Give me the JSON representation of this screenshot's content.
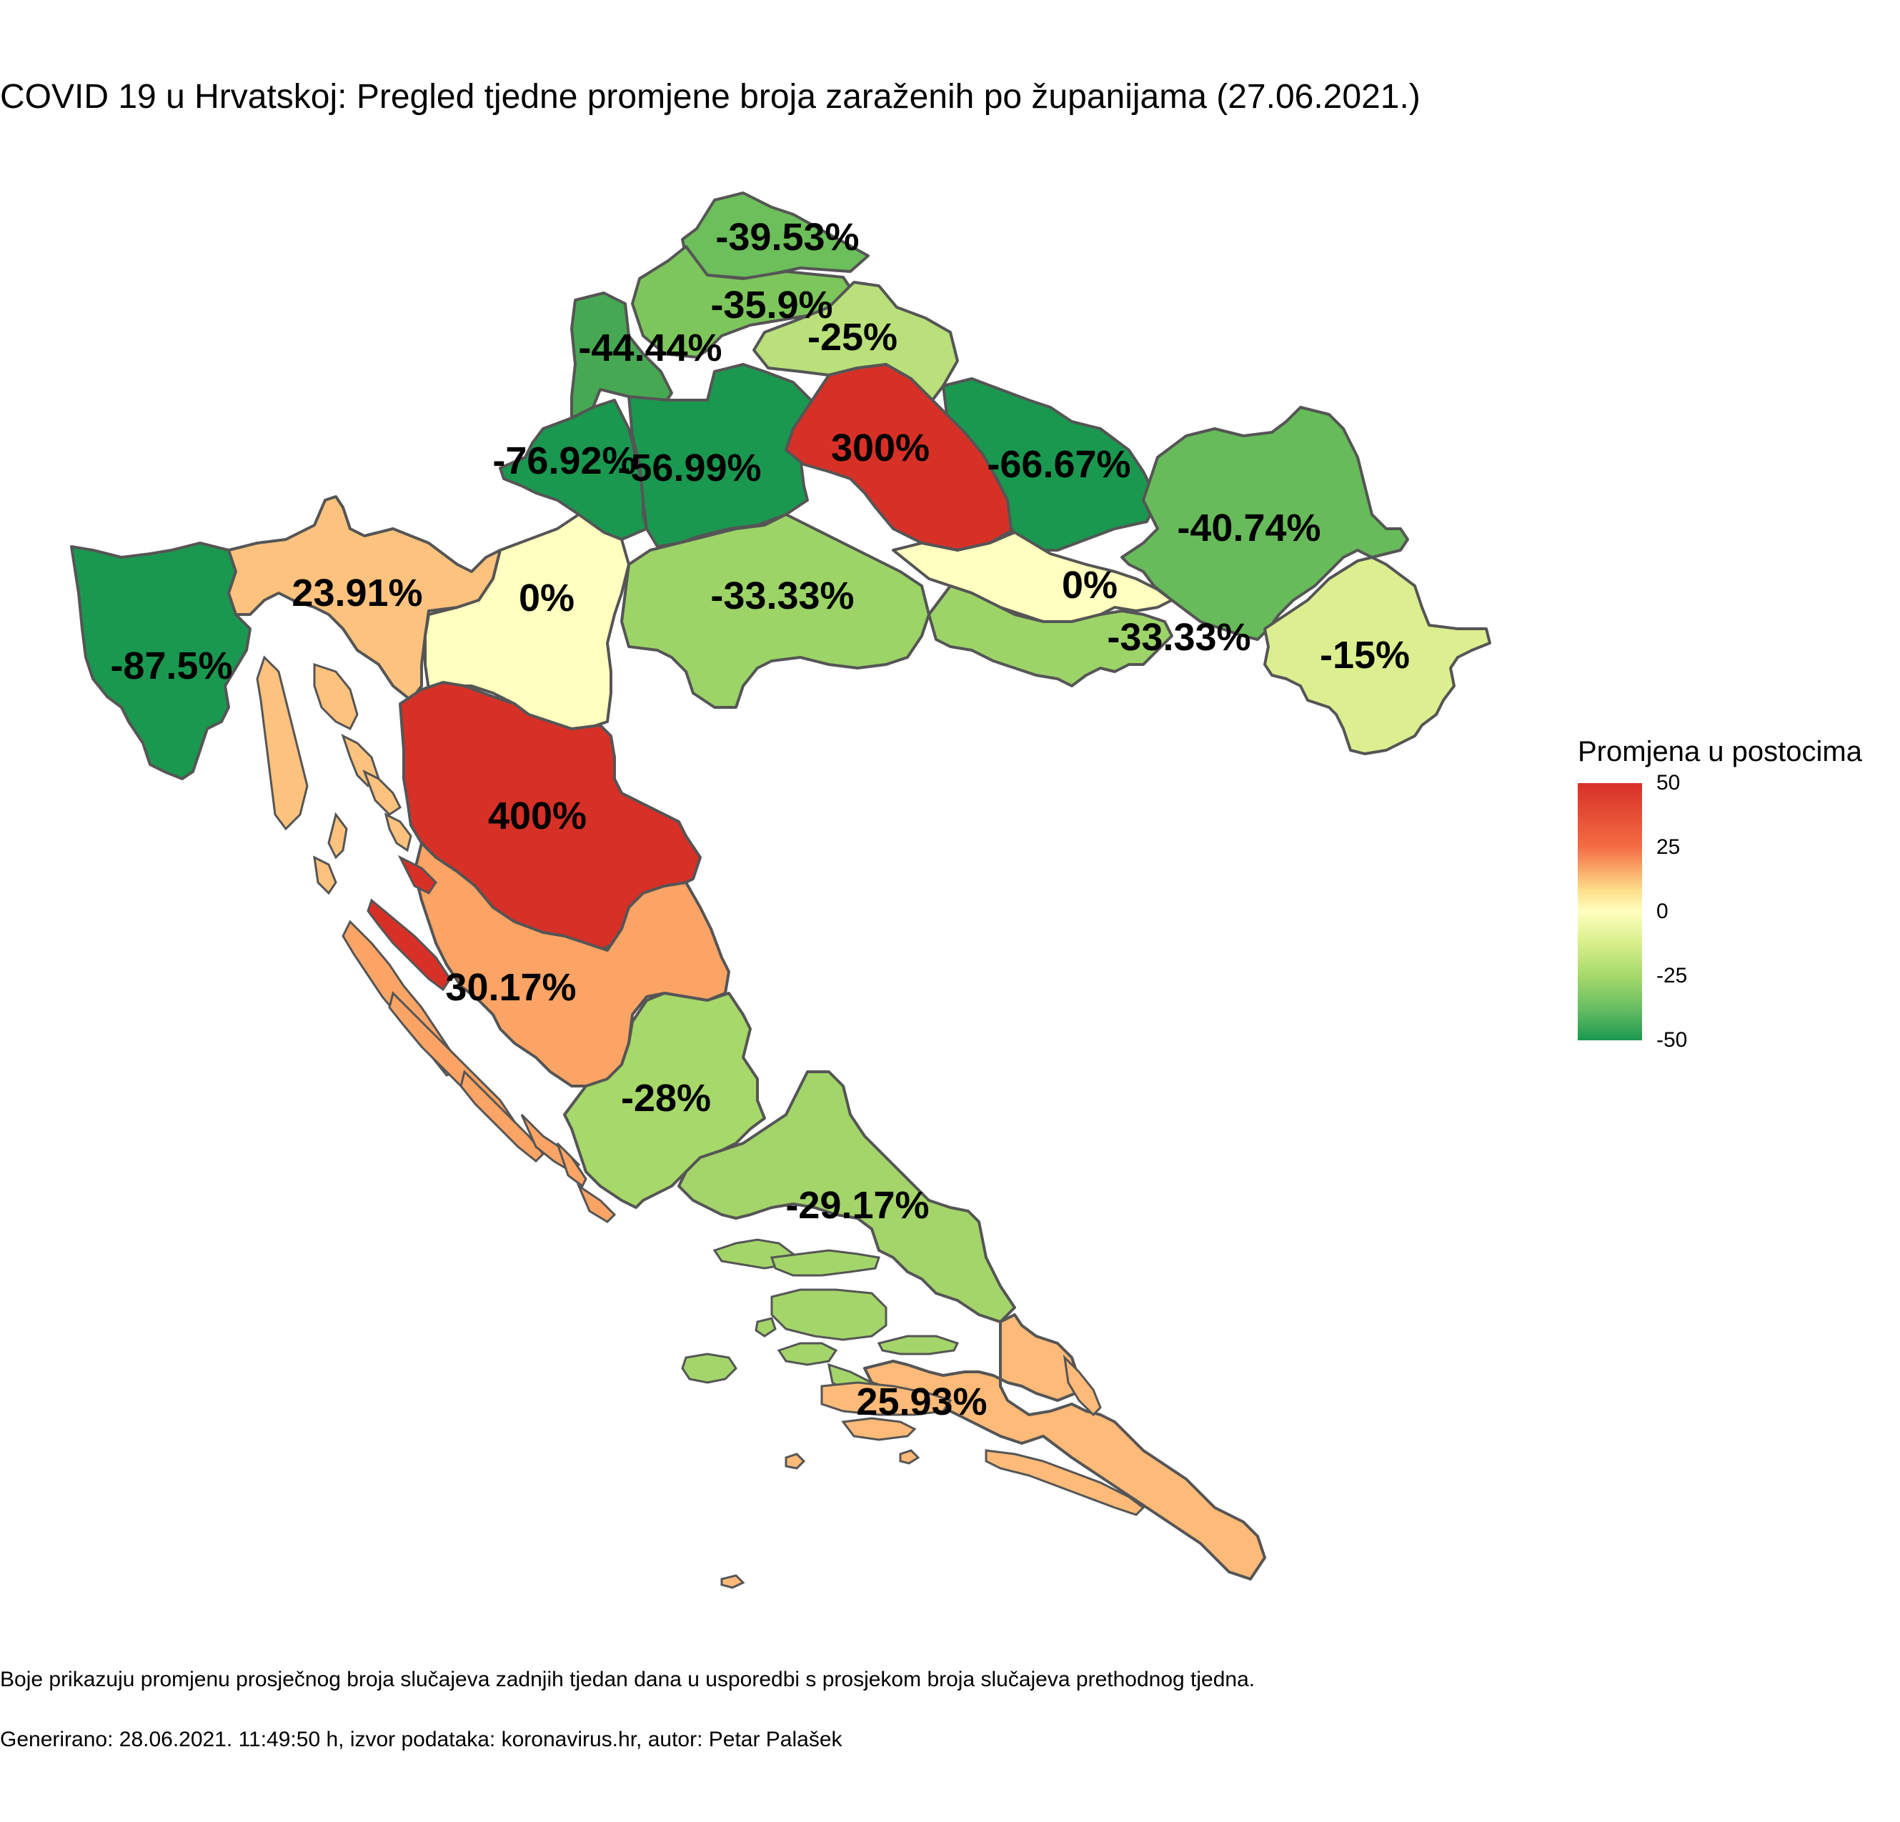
{
  "title": "COVID 19 u Hrvatskoj: Pregled tjedne promjene broja zaraženih po županijama (27.06.2021.)",
  "legend": {
    "title": "Promjena u postocima",
    "ticks": [
      "50",
      "25",
      "0",
      "-25",
      "-50"
    ],
    "colors": {
      "high": "#d73027",
      "mid": "#ffffbf",
      "low": "#1a9850"
    }
  },
  "regions": [
    {
      "label": "-39.53%",
      "value": -39.53,
      "color": "#6cbf5a"
    },
    {
      "label": "-35.9%",
      "value": -35.9,
      "color": "#7dc65c"
    },
    {
      "label": "-25%",
      "value": -25,
      "color": "#b9e07a"
    },
    {
      "label": "-44.44%",
      "value": -44.44,
      "color": "#46a852"
    },
    {
      "label": "-76.92%",
      "value": -76.92,
      "color": "#1a9850"
    },
    {
      "label": "-56.99%",
      "value": -56.99,
      "color": "#1a9850"
    },
    {
      "label": "300%",
      "value": 300,
      "color": "#d73027"
    },
    {
      "label": "-66.67%",
      "value": -66.67,
      "color": "#1a9850"
    },
    {
      "label": "-40.74%",
      "value": -40.74,
      "color": "#67bb5a"
    },
    {
      "label": "-87.5%",
      "value": -87.5,
      "color": "#1a9850"
    },
    {
      "label": "23.91%",
      "value": 23.91,
      "color": "#fdc27d"
    },
    {
      "label": "0%",
      "value": 0,
      "color": "#ffffbf"
    },
    {
      "label": "-33.33%",
      "value": -33.33,
      "color": "#9cd468"
    },
    {
      "label": "0%",
      "value": 0,
      "color": "#ffffbf"
    },
    {
      "label": "-33.33%",
      "value": -33.33,
      "color": "#9cd468"
    },
    {
      "label": "-15%",
      "value": -15,
      "color": "#dcef90"
    },
    {
      "label": "400%",
      "value": 400,
      "color": "#d73027"
    },
    {
      "label": "30.17%",
      "value": 30.17,
      "color": "#fba465"
    },
    {
      "label": "-28%",
      "value": -28,
      "color": "#a7d86a"
    },
    {
      "label": "-29.17%",
      "value": -29.17,
      "color": "#a4d56a"
    },
    {
      "label": "25.93%",
      "value": 25.93,
      "color": "#fdba78"
    }
  ],
  "notes": {
    "line1": "Boje prikazuju promjenu prosječnog broja slučajeva zadnjih tjedan dana u usporedbi s prosjekom broja slučajeva prethodnog tjedna.",
    "line2": "Generirano: 28.06.2021. 11:49:50 h, izvor podataka: koronavirus.hr, autor: Petar Palašek"
  }
}
